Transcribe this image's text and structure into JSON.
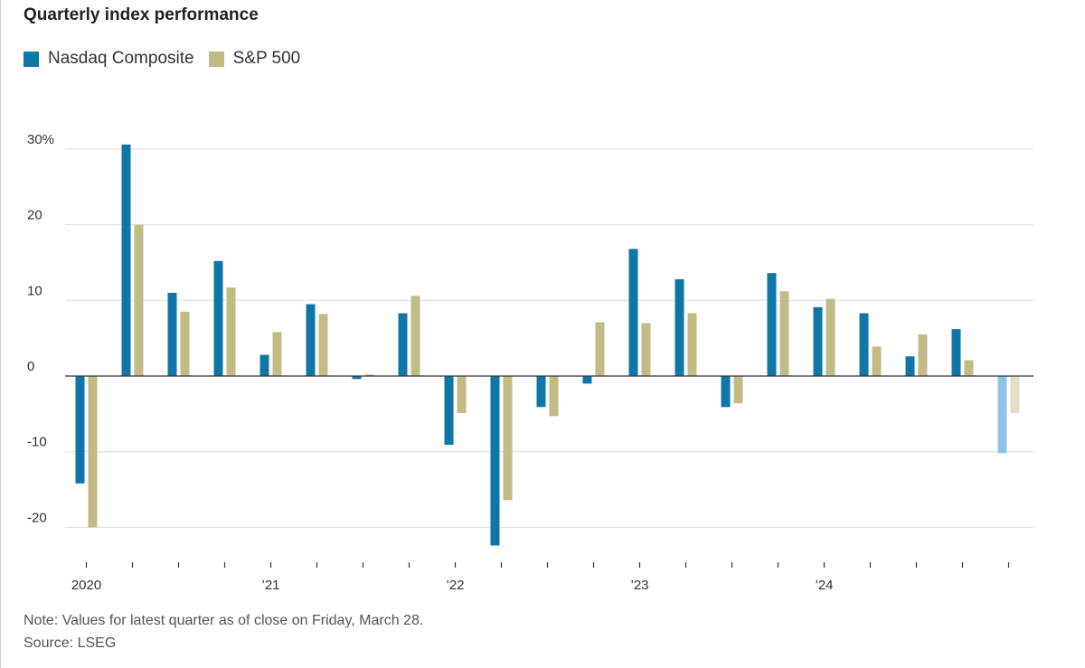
{
  "title": "Quarterly index performance",
  "legend": {
    "nasdaq_label": "Nasdaq Composite",
    "sp_label": "S&P 500"
  },
  "colors": {
    "nasdaq": "#0f76a8",
    "sp": "#c2bb85",
    "nasdaq_latest": "#8fc5e6",
    "sp_latest": "#e3dfc3",
    "grid": "#dddddd",
    "zero_line": "#333333"
  },
  "note": "Note: Values for latest quarter as of close on Friday, March 28.",
  "source": "Source: LSEG",
  "chart_data": {
    "type": "bar",
    "title": "Quarterly index performance",
    "ylim": [
      -25,
      32
    ],
    "yticks": [
      -20,
      -10,
      0,
      10,
      20,
      30
    ],
    "ytick_labels": [
      "-20",
      "-10",
      "0",
      "10",
      "20",
      "30%"
    ],
    "categories": [
      "2020 Q1",
      "2020 Q2",
      "2020 Q3",
      "2020 Q4",
      "2021 Q1",
      "2021 Q2",
      "2021 Q3",
      "2021 Q4",
      "2022 Q1",
      "2022 Q2",
      "2022 Q3",
      "2022 Q4",
      "2023 Q1",
      "2023 Q2",
      "2023 Q3",
      "2023 Q4",
      "2024 Q1",
      "2024 Q2",
      "2024 Q3",
      "2024 Q4",
      "2025 Q1"
    ],
    "year_labels": [
      {
        "index": 0,
        "label": "2020"
      },
      {
        "index": 4,
        "label": "’21"
      },
      {
        "index": 8,
        "label": "’22"
      },
      {
        "index": 12,
        "label": "’23"
      },
      {
        "index": 16,
        "label": "’24"
      }
    ],
    "latest_partial_index": 20,
    "series": [
      {
        "name": "Nasdaq Composite",
        "values": [
          -14.2,
          30.6,
          11.0,
          15.2,
          2.8,
          9.5,
          -0.4,
          8.3,
          -9.1,
          -22.4,
          -4.1,
          -1.0,
          16.8,
          12.8,
          -4.1,
          13.6,
          9.1,
          8.3,
          2.6,
          6.2,
          -10.2
        ]
      },
      {
        "name": "S&P 500",
        "values": [
          -20.0,
          20.0,
          8.5,
          11.7,
          5.8,
          8.2,
          0.2,
          10.6,
          -4.9,
          -16.4,
          -5.3,
          7.1,
          7.0,
          8.3,
          -3.6,
          11.2,
          10.2,
          3.9,
          5.5,
          2.1,
          -4.9
        ]
      }
    ]
  }
}
